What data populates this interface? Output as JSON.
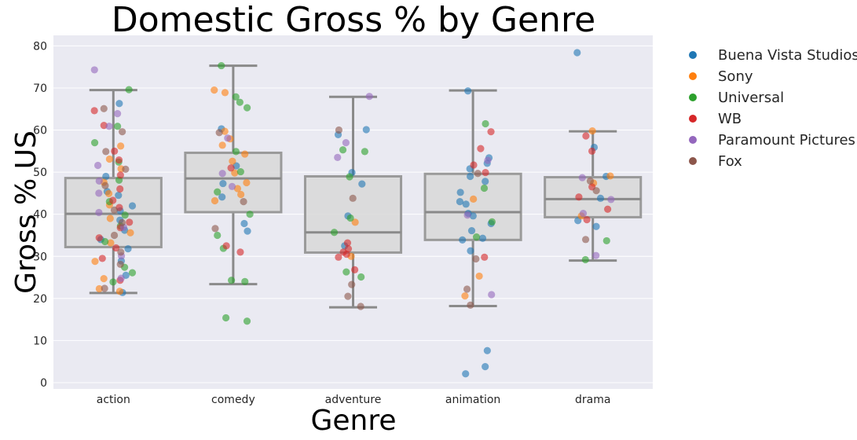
{
  "chart_data": {
    "type": "box",
    "title": "Domestic Gross % by Genre",
    "xlabel": "Genre",
    "ylabel": "Gross % US",
    "ylim": [
      -1.5,
      82.5
    ],
    "yticks": [
      0,
      10,
      20,
      30,
      40,
      50,
      60,
      70,
      80
    ],
    "categories": [
      "action",
      "comedy",
      "adventure",
      "animation",
      "drama"
    ],
    "grid": true,
    "legend_position": "outside-right",
    "boxes": [
      {
        "category": "action",
        "whisker_low": 21.3,
        "q1": 32.2,
        "median": 40.1,
        "q3": 48.6,
        "whisker_high": 69.5
      },
      {
        "category": "comedy",
        "whisker_low": 23.4,
        "q1": 40.5,
        "median": 48.5,
        "q3": 54.6,
        "whisker_high": 75.3
      },
      {
        "category": "adventure",
        "whisker_low": 17.9,
        "q1": 30.9,
        "median": 35.7,
        "q3": 49.0,
        "whisker_high": 67.9
      },
      {
        "category": "animation",
        "whisker_low": 18.2,
        "q1": 33.9,
        "median": 40.5,
        "q3": 49.6,
        "whisker_high": 69.4
      },
      {
        "category": "drama",
        "whisker_low": 29.0,
        "q1": 39.3,
        "median": 43.6,
        "q3": 48.8,
        "whisker_high": 59.7
      }
    ],
    "series": [
      {
        "name": "Buena Vista Studios",
        "color": "#1f77b4",
        "points": [
          {
            "x": "action",
            "y": 66.3
          },
          {
            "x": "action",
            "y": 49.0
          },
          {
            "x": "action",
            "y": 44.5
          },
          {
            "x": "action",
            "y": 42.0
          },
          {
            "x": "action",
            "y": 40.8
          },
          {
            "x": "action",
            "y": 38.6
          },
          {
            "x": "action",
            "y": 34.0
          },
          {
            "x": "action",
            "y": 31.8
          },
          {
            "x": "action",
            "y": 28.9
          },
          {
            "x": "action",
            "y": 25.5
          },
          {
            "x": "action",
            "y": 21.4
          },
          {
            "x": "action",
            "y": 45.4
          },
          {
            "x": "action",
            "y": 36.2
          },
          {
            "x": "comedy",
            "y": 60.3
          },
          {
            "x": "comedy",
            "y": 51.5
          },
          {
            "x": "comedy",
            "y": 47.3
          },
          {
            "x": "comedy",
            "y": 44.1
          },
          {
            "x": "comedy",
            "y": 37.8
          },
          {
            "x": "comedy",
            "y": 36.0
          },
          {
            "x": "adventure",
            "y": 60.1
          },
          {
            "x": "adventure",
            "y": 58.9
          },
          {
            "x": "adventure",
            "y": 49.9
          },
          {
            "x": "adventure",
            "y": 47.2
          },
          {
            "x": "adventure",
            "y": 39.6
          },
          {
            "x": "adventure",
            "y": 32.5
          },
          {
            "x": "animation",
            "y": 69.3
          },
          {
            "x": "animation",
            "y": 53.4
          },
          {
            "x": "animation",
            "y": 52.1
          },
          {
            "x": "animation",
            "y": 50.8
          },
          {
            "x": "animation",
            "y": 49.0
          },
          {
            "x": "animation",
            "y": 47.8
          },
          {
            "x": "animation",
            "y": 45.2
          },
          {
            "x": "animation",
            "y": 43.0
          },
          {
            "x": "animation",
            "y": 42.4
          },
          {
            "x": "animation",
            "y": 40.2
          },
          {
            "x": "animation",
            "y": 39.6
          },
          {
            "x": "animation",
            "y": 37.8
          },
          {
            "x": "animation",
            "y": 36.1
          },
          {
            "x": "animation",
            "y": 34.3
          },
          {
            "x": "animation",
            "y": 33.9
          },
          {
            "x": "animation",
            "y": 31.3
          },
          {
            "x": "animation",
            "y": 7.6
          },
          {
            "x": "animation",
            "y": 3.8
          },
          {
            "x": "animation",
            "y": 2.1
          },
          {
            "x": "drama",
            "y": 55.9
          },
          {
            "x": "drama",
            "y": 49.0
          },
          {
            "x": "drama",
            "y": 43.8
          },
          {
            "x": "drama",
            "y": 38.5
          },
          {
            "x": "drama",
            "y": 37.1
          },
          {
            "x": "drama",
            "y": 78.4
          }
        ]
      },
      {
        "name": "Sony",
        "color": "#ff7f0e",
        "points": [
          {
            "x": "action",
            "y": 56.2
          },
          {
            "x": "action",
            "y": 53.1
          },
          {
            "x": "action",
            "y": 50.8
          },
          {
            "x": "action",
            "y": 47.6
          },
          {
            "x": "action",
            "y": 44.9
          },
          {
            "x": "action",
            "y": 42.2
          },
          {
            "x": "action",
            "y": 39.0
          },
          {
            "x": "action",
            "y": 35.6
          },
          {
            "x": "action",
            "y": 33.2
          },
          {
            "x": "action",
            "y": 28.8
          },
          {
            "x": "action",
            "y": 24.7
          },
          {
            "x": "action",
            "y": 22.3
          },
          {
            "x": "action",
            "y": 21.7
          },
          {
            "x": "comedy",
            "y": 69.5
          },
          {
            "x": "comedy",
            "y": 68.9
          },
          {
            "x": "comedy",
            "y": 59.7
          },
          {
            "x": "comedy",
            "y": 57.9
          },
          {
            "x": "comedy",
            "y": 56.4
          },
          {
            "x": "comedy",
            "y": 54.3
          },
          {
            "x": "comedy",
            "y": 52.6
          },
          {
            "x": "comedy",
            "y": 49.8
          },
          {
            "x": "comedy",
            "y": 47.5
          },
          {
            "x": "comedy",
            "y": 46.1
          },
          {
            "x": "comedy",
            "y": 44.7
          },
          {
            "x": "comedy",
            "y": 43.2
          },
          {
            "x": "adventure",
            "y": 38.1
          },
          {
            "x": "adventure",
            "y": 30.0
          },
          {
            "x": "animation",
            "y": 43.6
          },
          {
            "x": "animation",
            "y": 25.3
          },
          {
            "x": "animation",
            "y": 20.6
          },
          {
            "x": "drama",
            "y": 59.8
          },
          {
            "x": "drama",
            "y": 49.1
          },
          {
            "x": "drama",
            "y": 39.6
          },
          {
            "x": "drama",
            "y": 47.4
          }
        ]
      },
      {
        "name": "Universal",
        "color": "#2ca02c",
        "points": [
          {
            "x": "action",
            "y": 69.6
          },
          {
            "x": "action",
            "y": 60.9
          },
          {
            "x": "action",
            "y": 57.0
          },
          {
            "x": "action",
            "y": 52.4
          },
          {
            "x": "action",
            "y": 48.1
          },
          {
            "x": "action",
            "y": 43.0
          },
          {
            "x": "action",
            "y": 39.8
          },
          {
            "x": "action",
            "y": 37.2
          },
          {
            "x": "action",
            "y": 33.5
          },
          {
            "x": "action",
            "y": 27.4
          },
          {
            "x": "action",
            "y": 26.1
          },
          {
            "x": "action",
            "y": 23.9
          },
          {
            "x": "comedy",
            "y": 75.3
          },
          {
            "x": "comedy",
            "y": 67.9
          },
          {
            "x": "comedy",
            "y": 66.6
          },
          {
            "x": "comedy",
            "y": 65.3
          },
          {
            "x": "comedy",
            "y": 54.9
          },
          {
            "x": "comedy",
            "y": 50.1
          },
          {
            "x": "comedy",
            "y": 45.3
          },
          {
            "x": "comedy",
            "y": 40.0
          },
          {
            "x": "comedy",
            "y": 35.0
          },
          {
            "x": "comedy",
            "y": 31.9
          },
          {
            "x": "comedy",
            "y": 24.3
          },
          {
            "x": "comedy",
            "y": 24.0
          },
          {
            "x": "comedy",
            "y": 15.4
          },
          {
            "x": "comedy",
            "y": 14.6
          },
          {
            "x": "adventure",
            "y": 55.3
          },
          {
            "x": "adventure",
            "y": 54.9
          },
          {
            "x": "adventure",
            "y": 48.9
          },
          {
            "x": "adventure",
            "y": 39.1
          },
          {
            "x": "adventure",
            "y": 35.7
          },
          {
            "x": "adventure",
            "y": 26.3
          },
          {
            "x": "adventure",
            "y": 25.1
          },
          {
            "x": "animation",
            "y": 61.5
          },
          {
            "x": "animation",
            "y": 46.2
          },
          {
            "x": "animation",
            "y": 38.2
          },
          {
            "x": "animation",
            "y": 34.6
          },
          {
            "x": "drama",
            "y": 33.7
          },
          {
            "x": "drama",
            "y": 29.2
          }
        ]
      },
      {
        "name": "WB",
        "color": "#d62728",
        "points": [
          {
            "x": "action",
            "y": 64.6
          },
          {
            "x": "action",
            "y": 61.1
          },
          {
            "x": "action",
            "y": 55.0
          },
          {
            "x": "action",
            "y": 52.9
          },
          {
            "x": "action",
            "y": 49.3
          },
          {
            "x": "action",
            "y": 46.0
          },
          {
            "x": "action",
            "y": 43.3
          },
          {
            "x": "action",
            "y": 41.6
          },
          {
            "x": "action",
            "y": 38.1
          },
          {
            "x": "action",
            "y": 36.8
          },
          {
            "x": "action",
            "y": 34.4
          },
          {
            "x": "action",
            "y": 32.0
          },
          {
            "x": "action",
            "y": 29.5
          },
          {
            "x": "action",
            "y": 24.3
          },
          {
            "x": "comedy",
            "y": 51.0
          },
          {
            "x": "comedy",
            "y": 32.5
          },
          {
            "x": "comedy",
            "y": 31.0
          },
          {
            "x": "adventure",
            "y": 33.2
          },
          {
            "x": "adventure",
            "y": 31.8
          },
          {
            "x": "adventure",
            "y": 31.0
          },
          {
            "x": "adventure",
            "y": 30.5
          },
          {
            "x": "adventure",
            "y": 29.8
          },
          {
            "x": "adventure",
            "y": 26.8
          },
          {
            "x": "animation",
            "y": 59.6
          },
          {
            "x": "animation",
            "y": 55.6
          },
          {
            "x": "animation",
            "y": 51.7
          },
          {
            "x": "animation",
            "y": 49.9
          },
          {
            "x": "animation",
            "y": 29.8
          },
          {
            "x": "drama",
            "y": 58.6
          },
          {
            "x": "drama",
            "y": 55.0
          },
          {
            "x": "drama",
            "y": 46.5
          },
          {
            "x": "drama",
            "y": 44.1
          },
          {
            "x": "drama",
            "y": 41.2
          },
          {
            "x": "drama",
            "y": 38.7
          }
        ]
      },
      {
        "name": "Paramount Pictures",
        "color": "#9467bd",
        "points": [
          {
            "x": "action",
            "y": 74.3
          },
          {
            "x": "action",
            "y": 63.9
          },
          {
            "x": "action",
            "y": 60.9
          },
          {
            "x": "action",
            "y": 51.6
          },
          {
            "x": "action",
            "y": 47.9
          },
          {
            "x": "action",
            "y": 45.0
          },
          {
            "x": "action",
            "y": 40.4
          },
          {
            "x": "action",
            "y": 36.9
          },
          {
            "x": "action",
            "y": 30.1
          },
          {
            "x": "action",
            "y": 24.8
          },
          {
            "x": "comedy",
            "y": 58.1
          },
          {
            "x": "comedy",
            "y": 49.7
          },
          {
            "x": "comedy",
            "y": 46.6
          },
          {
            "x": "adventure",
            "y": 68.0
          },
          {
            "x": "adventure",
            "y": 57.0
          },
          {
            "x": "adventure",
            "y": 53.5
          },
          {
            "x": "animation",
            "y": 52.8
          },
          {
            "x": "animation",
            "y": 39.8
          },
          {
            "x": "animation",
            "y": 20.9
          },
          {
            "x": "drama",
            "y": 48.7
          },
          {
            "x": "drama",
            "y": 40.2
          },
          {
            "x": "drama",
            "y": 30.2
          },
          {
            "x": "drama",
            "y": 43.5
          }
        ]
      },
      {
        "name": "Fox",
        "color": "#8c564b",
        "points": [
          {
            "x": "action",
            "y": 65.1
          },
          {
            "x": "action",
            "y": 59.6
          },
          {
            "x": "action",
            "y": 54.9
          },
          {
            "x": "action",
            "y": 50.7
          },
          {
            "x": "action",
            "y": 46.8
          },
          {
            "x": "action",
            "y": 41.0
          },
          {
            "x": "action",
            "y": 38.0
          },
          {
            "x": "action",
            "y": 35.0
          },
          {
            "x": "action",
            "y": 31.0
          },
          {
            "x": "action",
            "y": 28.1
          },
          {
            "x": "action",
            "y": 22.4
          },
          {
            "x": "comedy",
            "y": 59.4
          },
          {
            "x": "comedy",
            "y": 43.0
          },
          {
            "x": "comedy",
            "y": 36.6
          },
          {
            "x": "adventure",
            "y": 60.0
          },
          {
            "x": "adventure",
            "y": 43.8
          },
          {
            "x": "adventure",
            "y": 23.3
          },
          {
            "x": "adventure",
            "y": 20.5
          },
          {
            "x": "adventure",
            "y": 18.1
          },
          {
            "x": "animation",
            "y": 49.7
          },
          {
            "x": "animation",
            "y": 29.4
          },
          {
            "x": "animation",
            "y": 22.2
          },
          {
            "x": "animation",
            "y": 18.4
          },
          {
            "x": "drama",
            "y": 47.9
          },
          {
            "x": "drama",
            "y": 45.6
          },
          {
            "x": "drama",
            "y": 34.0
          }
        ]
      }
    ]
  }
}
